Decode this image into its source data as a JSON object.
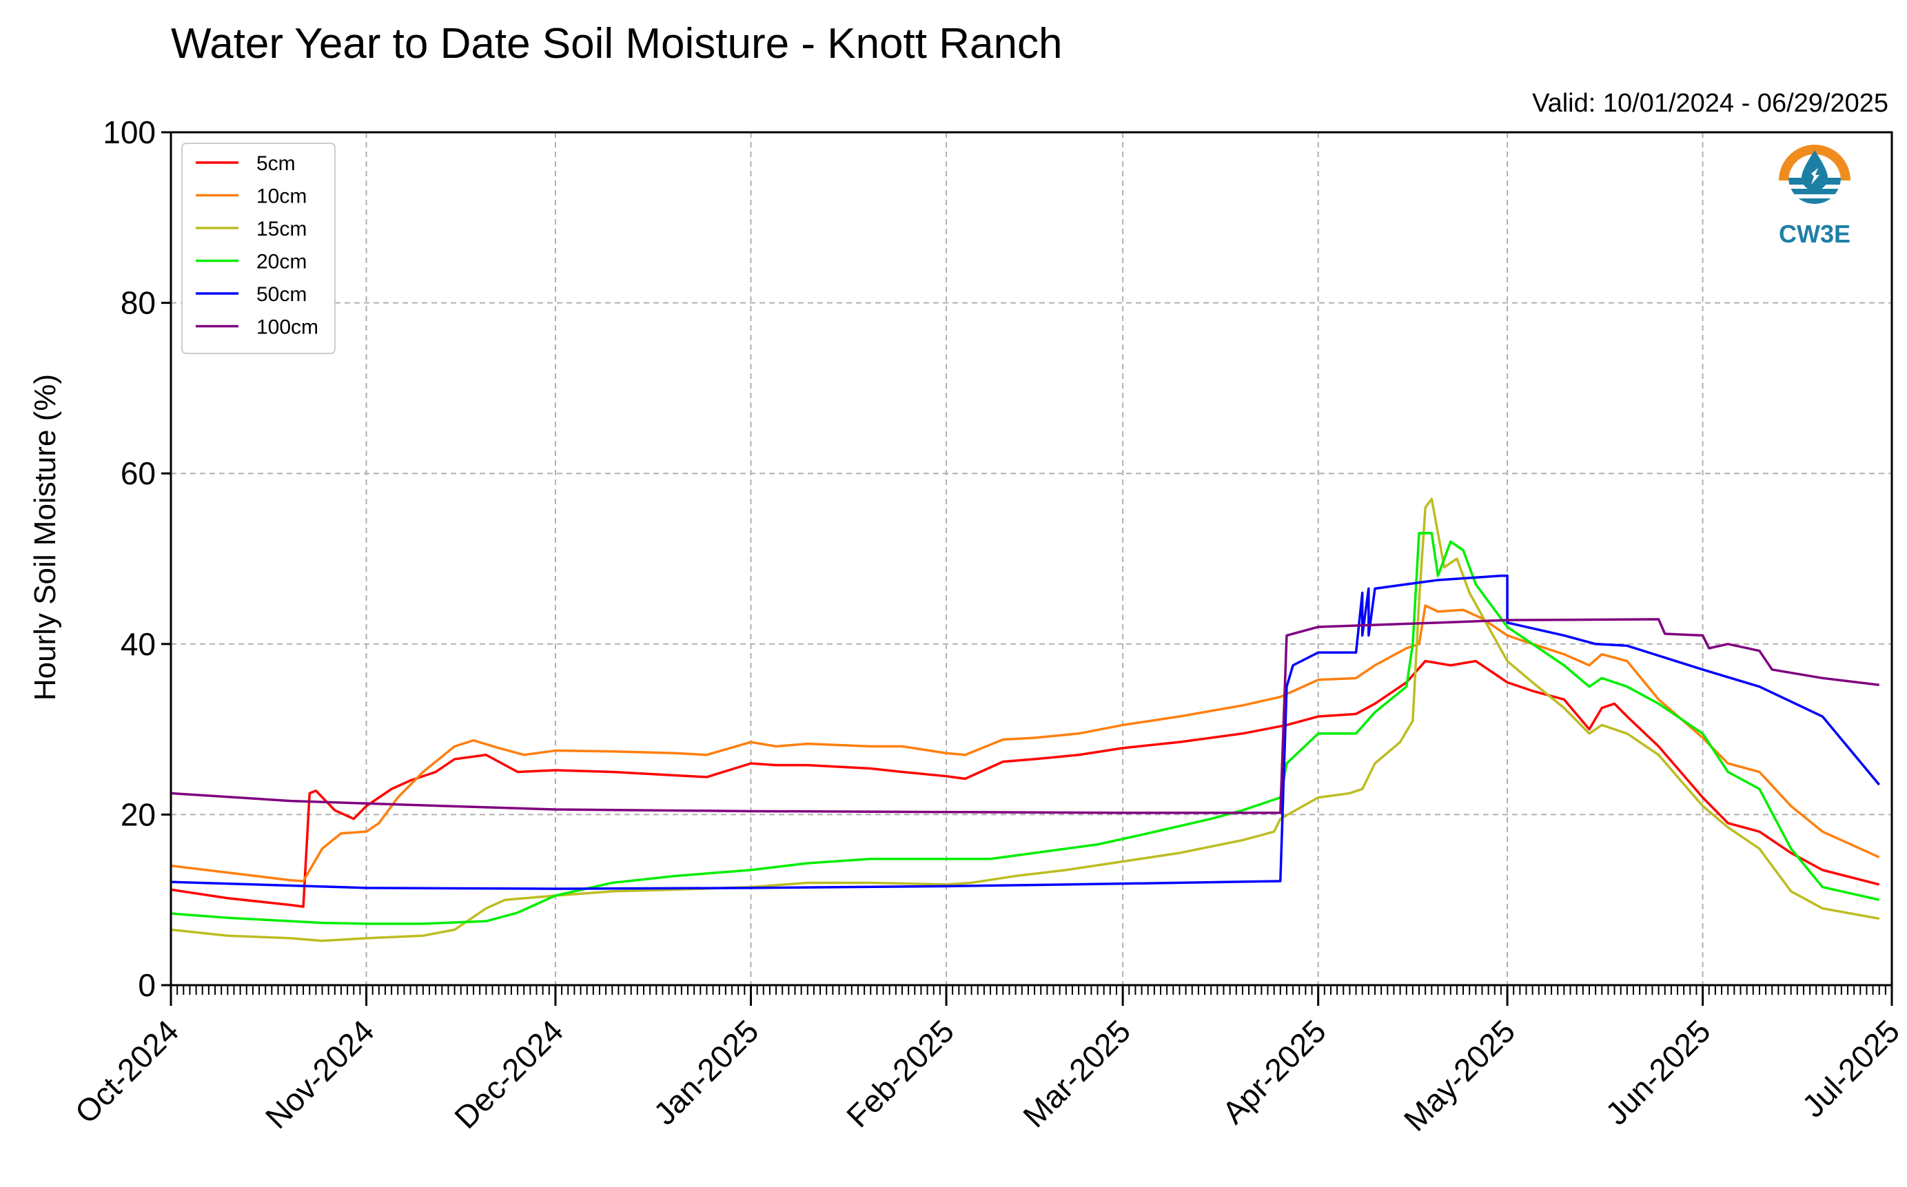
{
  "chart_data": {
    "type": "line",
    "title": "Water Year to Date Soil Moisture - Knott Ranch",
    "subtitle": "Valid: 10/01/2024 - 06/29/2025",
    "xlabel": "",
    "ylabel": "Hourly Soil Moisture (%)",
    "ylim": [
      0,
      100
    ],
    "xlim": [
      "2024-10-01",
      "2025-07-01"
    ],
    "y_ticks": [
      "0",
      "20",
      "40",
      "60",
      "80",
      "100"
    ],
    "x_ticks": [
      {
        "label": "Oct-2024",
        "date": "2024-10-01"
      },
      {
        "label": "Nov-2024",
        "date": "2024-11-01"
      },
      {
        "label": "Dec-2024",
        "date": "2024-12-01"
      },
      {
        "label": "Jan-2025",
        "date": "2025-01-01"
      },
      {
        "label": "Feb-2025",
        "date": "2025-02-01"
      },
      {
        "label": "Mar-2025",
        "date": "2025-03-01"
      },
      {
        "label": "Apr-2025",
        "date": "2025-04-01"
      },
      {
        "label": "May-2025",
        "date": "2025-05-01"
      },
      {
        "label": "Jun-2025",
        "date": "2025-06-01"
      },
      {
        "label": "Jul-2025",
        "date": "2025-07-01"
      }
    ],
    "grid": true,
    "legend_position": "top-left",
    "logo_text": "CW3E",
    "series": [
      {
        "name": "5cm",
        "color": "#ff0000",
        "points": [
          [
            "2024-10-01",
            11.2
          ],
          [
            "2024-10-10",
            10.2
          ],
          [
            "2024-10-20",
            9.4
          ],
          [
            "2024-10-22",
            9.2
          ],
          [
            "2024-10-23",
            22.5
          ],
          [
            "2024-10-24",
            22.8
          ],
          [
            "2024-10-27",
            20.5
          ],
          [
            "2024-10-30",
            19.5
          ],
          [
            "2024-11-01",
            21.0
          ],
          [
            "2024-11-05",
            23.0
          ],
          [
            "2024-11-08",
            24.0
          ],
          [
            "2024-11-12",
            25.0
          ],
          [
            "2024-11-15",
            26.5
          ],
          [
            "2024-11-20",
            27.0
          ],
          [
            "2024-11-25",
            25.0
          ],
          [
            "2024-12-01",
            25.2
          ],
          [
            "2024-12-10",
            25.0
          ],
          [
            "2024-12-20",
            24.6
          ],
          [
            "2024-12-25",
            24.4
          ],
          [
            "2025-01-01",
            26.0
          ],
          [
            "2025-01-05",
            25.8
          ],
          [
            "2025-01-10",
            25.8
          ],
          [
            "2025-01-20",
            25.4
          ],
          [
            "2025-01-25",
            25.0
          ],
          [
            "2025-02-01",
            24.5
          ],
          [
            "2025-02-04",
            24.2
          ],
          [
            "2025-02-10",
            26.2
          ],
          [
            "2025-02-15",
            26.5
          ],
          [
            "2025-02-22",
            27.0
          ],
          [
            "2025-03-01",
            27.8
          ],
          [
            "2025-03-10",
            28.5
          ],
          [
            "2025-03-20",
            29.5
          ],
          [
            "2025-03-27",
            30.5
          ],
          [
            "2025-04-01",
            31.5
          ],
          [
            "2025-04-07",
            31.8
          ],
          [
            "2025-04-10",
            33.0
          ],
          [
            "2025-04-15",
            35.5
          ],
          [
            "2025-04-18",
            38.0
          ],
          [
            "2025-04-22",
            37.5
          ],
          [
            "2025-04-26",
            38.0
          ],
          [
            "2025-05-01",
            35.5
          ],
          [
            "2025-05-05",
            34.5
          ],
          [
            "2025-05-10",
            33.5
          ],
          [
            "2025-05-14",
            30.0
          ],
          [
            "2025-05-16",
            32.5
          ],
          [
            "2025-05-18",
            33.0
          ],
          [
            "2025-05-20",
            31.5
          ],
          [
            "2025-05-25",
            28.0
          ],
          [
            "2025-06-01",
            22.0
          ],
          [
            "2025-06-05",
            19.0
          ],
          [
            "2025-06-10",
            18.0
          ],
          [
            "2025-06-15",
            15.5
          ],
          [
            "2025-06-20",
            13.5
          ],
          [
            "2025-06-29",
            11.8
          ]
        ]
      },
      {
        "name": "10cm",
        "color": "#ff7f0e",
        "points": [
          [
            "2024-10-01",
            14.0
          ],
          [
            "2024-10-10",
            13.2
          ],
          [
            "2024-10-20",
            12.3
          ],
          [
            "2024-10-22",
            12.2
          ],
          [
            "2024-10-25",
            16.0
          ],
          [
            "2024-10-28",
            17.8
          ],
          [
            "2024-11-01",
            18.0
          ],
          [
            "2024-11-03",
            19.0
          ],
          [
            "2024-11-06",
            22.0
          ],
          [
            "2024-11-10",
            25.0
          ],
          [
            "2024-11-15",
            28.0
          ],
          [
            "2024-11-18",
            28.7
          ],
          [
            "2024-11-22",
            27.8
          ],
          [
            "2024-11-26",
            27.0
          ],
          [
            "2024-12-01",
            27.5
          ],
          [
            "2024-12-10",
            27.4
          ],
          [
            "2024-12-20",
            27.2
          ],
          [
            "2024-12-25",
            27.0
          ],
          [
            "2025-01-01",
            28.5
          ],
          [
            "2025-01-05",
            28.0
          ],
          [
            "2025-01-10",
            28.3
          ],
          [
            "2025-01-20",
            28.0
          ],
          [
            "2025-01-25",
            28.0
          ],
          [
            "2025-02-01",
            27.2
          ],
          [
            "2025-02-04",
            27.0
          ],
          [
            "2025-02-10",
            28.8
          ],
          [
            "2025-02-15",
            29.0
          ],
          [
            "2025-02-22",
            29.5
          ],
          [
            "2025-03-01",
            30.5
          ],
          [
            "2025-03-10",
            31.5
          ],
          [
            "2025-03-20",
            32.8
          ],
          [
            "2025-03-26",
            33.8
          ],
          [
            "2025-04-01",
            35.8
          ],
          [
            "2025-04-07",
            36.0
          ],
          [
            "2025-04-10",
            37.5
          ],
          [
            "2025-04-15",
            39.5
          ],
          [
            "2025-04-17",
            40.0
          ],
          [
            "2025-04-18",
            44.5
          ],
          [
            "2025-04-20",
            43.8
          ],
          [
            "2025-04-24",
            44.0
          ],
          [
            "2025-04-27",
            43.0
          ],
          [
            "2025-05-01",
            41.0
          ],
          [
            "2025-05-05",
            40.0
          ],
          [
            "2025-05-10",
            38.8
          ],
          [
            "2025-05-14",
            37.5
          ],
          [
            "2025-05-16",
            38.8
          ],
          [
            "2025-05-20",
            38.0
          ],
          [
            "2025-05-25",
            33.5
          ],
          [
            "2025-06-01",
            29.0
          ],
          [
            "2025-06-05",
            26.0
          ],
          [
            "2025-06-10",
            25.0
          ],
          [
            "2025-06-15",
            21.0
          ],
          [
            "2025-06-20",
            18.0
          ],
          [
            "2025-06-29",
            15.0
          ]
        ]
      },
      {
        "name": "15cm",
        "color": "#bcbd22",
        "points": [
          [
            "2024-10-01",
            6.5
          ],
          [
            "2024-10-10",
            5.8
          ],
          [
            "2024-10-20",
            5.5
          ],
          [
            "2024-10-25",
            5.2
          ],
          [
            "2024-11-01",
            5.5
          ],
          [
            "2024-11-10",
            5.8
          ],
          [
            "2024-11-15",
            6.5
          ],
          [
            "2024-11-20",
            9.0
          ],
          [
            "2024-11-23",
            10.0
          ],
          [
            "2024-12-01",
            10.5
          ],
          [
            "2024-12-10",
            11.0
          ],
          [
            "2024-12-20",
            11.2
          ],
          [
            "2025-01-01",
            11.5
          ],
          [
            "2025-01-10",
            12.0
          ],
          [
            "2025-01-20",
            12.0
          ],
          [
            "2025-02-01",
            11.8
          ],
          [
            "2025-02-05",
            12.0
          ],
          [
            "2025-02-12",
            12.8
          ],
          [
            "2025-02-20",
            13.5
          ],
          [
            "2025-03-01",
            14.5
          ],
          [
            "2025-03-10",
            15.5
          ],
          [
            "2025-03-20",
            17.0
          ],
          [
            "2025-03-25",
            18.0
          ],
          [
            "2025-03-26",
            19.5
          ],
          [
            "2025-04-01",
            22.0
          ],
          [
            "2025-04-06",
            22.5
          ],
          [
            "2025-04-08",
            23.0
          ],
          [
            "2025-04-10",
            26.0
          ],
          [
            "2025-04-14",
            28.5
          ],
          [
            "2025-04-16",
            31.0
          ],
          [
            "2025-04-17",
            45.0
          ],
          [
            "2025-04-18",
            56.0
          ],
          [
            "2025-04-19",
            57.0
          ],
          [
            "2025-04-21",
            49.0
          ],
          [
            "2025-04-23",
            50.0
          ],
          [
            "2025-04-25",
            46.0
          ],
          [
            "2025-05-01",
            38.0
          ],
          [
            "2025-05-05",
            35.5
          ],
          [
            "2025-05-10",
            32.5
          ],
          [
            "2025-05-14",
            29.5
          ],
          [
            "2025-05-16",
            30.5
          ],
          [
            "2025-05-20",
            29.5
          ],
          [
            "2025-05-25",
            27.0
          ],
          [
            "2025-06-01",
            21.0
          ],
          [
            "2025-06-05",
            18.5
          ],
          [
            "2025-06-10",
            16.0
          ],
          [
            "2025-06-15",
            11.0
          ],
          [
            "2025-06-20",
            9.0
          ],
          [
            "2025-06-29",
            7.8
          ]
        ]
      },
      {
        "name": "20cm",
        "color": "#00ee00",
        "points": [
          [
            "2024-10-01",
            8.4
          ],
          [
            "2024-10-10",
            7.9
          ],
          [
            "2024-10-20",
            7.5
          ],
          [
            "2024-10-25",
            7.3
          ],
          [
            "2024-11-01",
            7.2
          ],
          [
            "2024-11-10",
            7.2
          ],
          [
            "2024-11-20",
            7.5
          ],
          [
            "2024-11-25",
            8.5
          ],
          [
            "2024-12-01",
            10.5
          ],
          [
            "2024-12-10",
            12.0
          ],
          [
            "2024-12-20",
            12.8
          ],
          [
            "2025-01-01",
            13.5
          ],
          [
            "2025-01-10",
            14.3
          ],
          [
            "2025-01-20",
            14.8
          ],
          [
            "2025-02-01",
            14.8
          ],
          [
            "2025-02-08",
            14.8
          ],
          [
            "2025-02-15",
            15.5
          ],
          [
            "2025-02-25",
            16.5
          ],
          [
            "2025-03-05",
            17.8
          ],
          [
            "2025-03-15",
            19.5
          ],
          [
            "2025-03-20",
            20.5
          ],
          [
            "2025-03-26",
            22.0
          ],
          [
            "2025-03-27",
            26.0
          ],
          [
            "2025-04-01",
            29.5
          ],
          [
            "2025-04-07",
            29.5
          ],
          [
            "2025-04-10",
            32.0
          ],
          [
            "2025-04-15",
            35.0
          ],
          [
            "2025-04-16",
            40.0
          ],
          [
            "2025-04-17",
            53.0
          ],
          [
            "2025-04-19",
            53.0
          ],
          [
            "2025-04-20",
            48.0
          ],
          [
            "2025-04-22",
            52.0
          ],
          [
            "2025-04-24",
            51.0
          ],
          [
            "2025-04-26",
            47.0
          ],
          [
            "2025-05-01",
            42.0
          ],
          [
            "2025-05-05",
            40.0
          ],
          [
            "2025-05-10",
            37.5
          ],
          [
            "2025-05-14",
            35.0
          ],
          [
            "2025-05-16",
            36.0
          ],
          [
            "2025-05-20",
            35.0
          ],
          [
            "2025-05-25",
            33.0
          ],
          [
            "2025-06-01",
            29.5
          ],
          [
            "2025-06-05",
            25.0
          ],
          [
            "2025-06-10",
            23.0
          ],
          [
            "2025-06-15",
            16.0
          ],
          [
            "2025-06-20",
            11.5
          ],
          [
            "2025-06-29",
            10.0
          ]
        ]
      },
      {
        "name": "50cm",
        "color": "#0000ff",
        "points": [
          [
            "2024-10-01",
            12.1
          ],
          [
            "2024-11-01",
            11.4
          ],
          [
            "2024-12-01",
            11.3
          ],
          [
            "2025-01-01",
            11.4
          ],
          [
            "2025-02-01",
            11.6
          ],
          [
            "2025-03-01",
            11.9
          ],
          [
            "2025-03-26",
            12.2
          ],
          [
            "2025-03-27",
            35.0
          ],
          [
            "2025-03-28",
            37.5
          ],
          [
            "2025-04-01",
            39.0
          ],
          [
            "2025-04-07",
            39.0
          ],
          [
            "2025-04-08",
            46.0
          ],
          [
            "2025-04-08",
            41.0
          ],
          [
            "2025-04-09",
            46.5
          ],
          [
            "2025-04-09",
            41.0
          ],
          [
            "2025-04-10",
            46.5
          ],
          [
            "2025-04-20",
            47.5
          ],
          [
            "2025-04-30",
            48.0
          ],
          [
            "2025-05-01",
            48.0
          ],
          [
            "2025-05-01",
            42.5
          ],
          [
            "2025-05-10",
            41.0
          ],
          [
            "2025-05-15",
            40.0
          ],
          [
            "2025-05-20",
            39.8
          ],
          [
            "2025-06-01",
            37.0
          ],
          [
            "2025-06-10",
            35.0
          ],
          [
            "2025-06-20",
            31.5
          ],
          [
            "2025-06-29",
            23.5
          ]
        ]
      },
      {
        "name": "100cm",
        "color": "#800080",
        "points": [
          [
            "2024-10-01",
            22.5
          ],
          [
            "2024-10-20",
            21.6
          ],
          [
            "2024-11-01",
            21.3
          ],
          [
            "2024-12-01",
            20.6
          ],
          [
            "2025-01-01",
            20.4
          ],
          [
            "2025-02-01",
            20.3
          ],
          [
            "2025-03-01",
            20.2
          ],
          [
            "2025-03-26",
            20.2
          ],
          [
            "2025-03-27",
            41.0
          ],
          [
            "2025-04-01",
            42.0
          ],
          [
            "2025-04-20",
            42.5
          ],
          [
            "2025-05-01",
            42.8
          ],
          [
            "2025-05-25",
            42.9
          ],
          [
            "2025-05-26",
            41.2
          ],
          [
            "2025-06-01",
            41.0
          ],
          [
            "2025-06-02",
            39.5
          ],
          [
            "2025-06-05",
            40.0
          ],
          [
            "2025-06-10",
            39.2
          ],
          [
            "2025-06-12",
            37.0
          ],
          [
            "2025-06-20",
            36.0
          ],
          [
            "2025-06-29",
            35.2
          ]
        ]
      }
    ]
  }
}
